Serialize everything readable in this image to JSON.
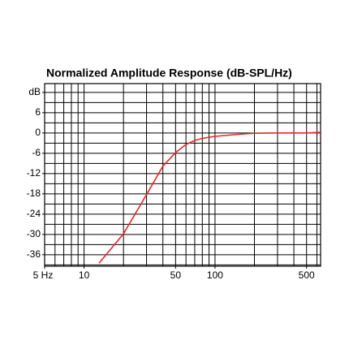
{
  "chart_data": {
    "type": "line",
    "title": "Normalized Amplitude Response (dB-SPL/Hz)",
    "x_scale": "log",
    "xlim": [
      5,
      640
    ],
    "ylim": [
      -39.4,
      14.6
    ],
    "xticks": [
      {
        "value": 5,
        "label": "5 Hz"
      },
      10,
      50,
      100,
      500
    ],
    "xgrid": [
      5,
      6,
      7,
      8,
      9,
      10,
      20,
      30,
      40,
      50,
      60,
      70,
      80,
      90,
      100,
      200,
      300,
      400,
      500,
      600
    ],
    "yticks": [
      {
        "value": 12,
        "label": "dB"
      },
      6,
      0,
      -6,
      -12,
      -18,
      -24,
      -30,
      -36
    ],
    "ygrid": [
      12,
      9,
      6,
      3,
      0,
      -3,
      -6,
      -9,
      -12,
      -15,
      -18,
      -21,
      -24,
      -27,
      -30,
      -33,
      -36,
      -39
    ],
    "grid": true,
    "series": [
      {
        "color": "#e8262a",
        "x": [
          13,
          20,
          30,
          40,
          50,
          60,
          70,
          80,
          100,
          150,
          200,
          300,
          500,
          640
        ],
        "values": [
          -38.5,
          -29.8,
          -18.2,
          -9.8,
          -5.8,
          -3.4,
          -2.2,
          -1.6,
          -1.0,
          -0.4,
          -0.1,
          0,
          0,
          0.2
        ]
      }
    ]
  }
}
